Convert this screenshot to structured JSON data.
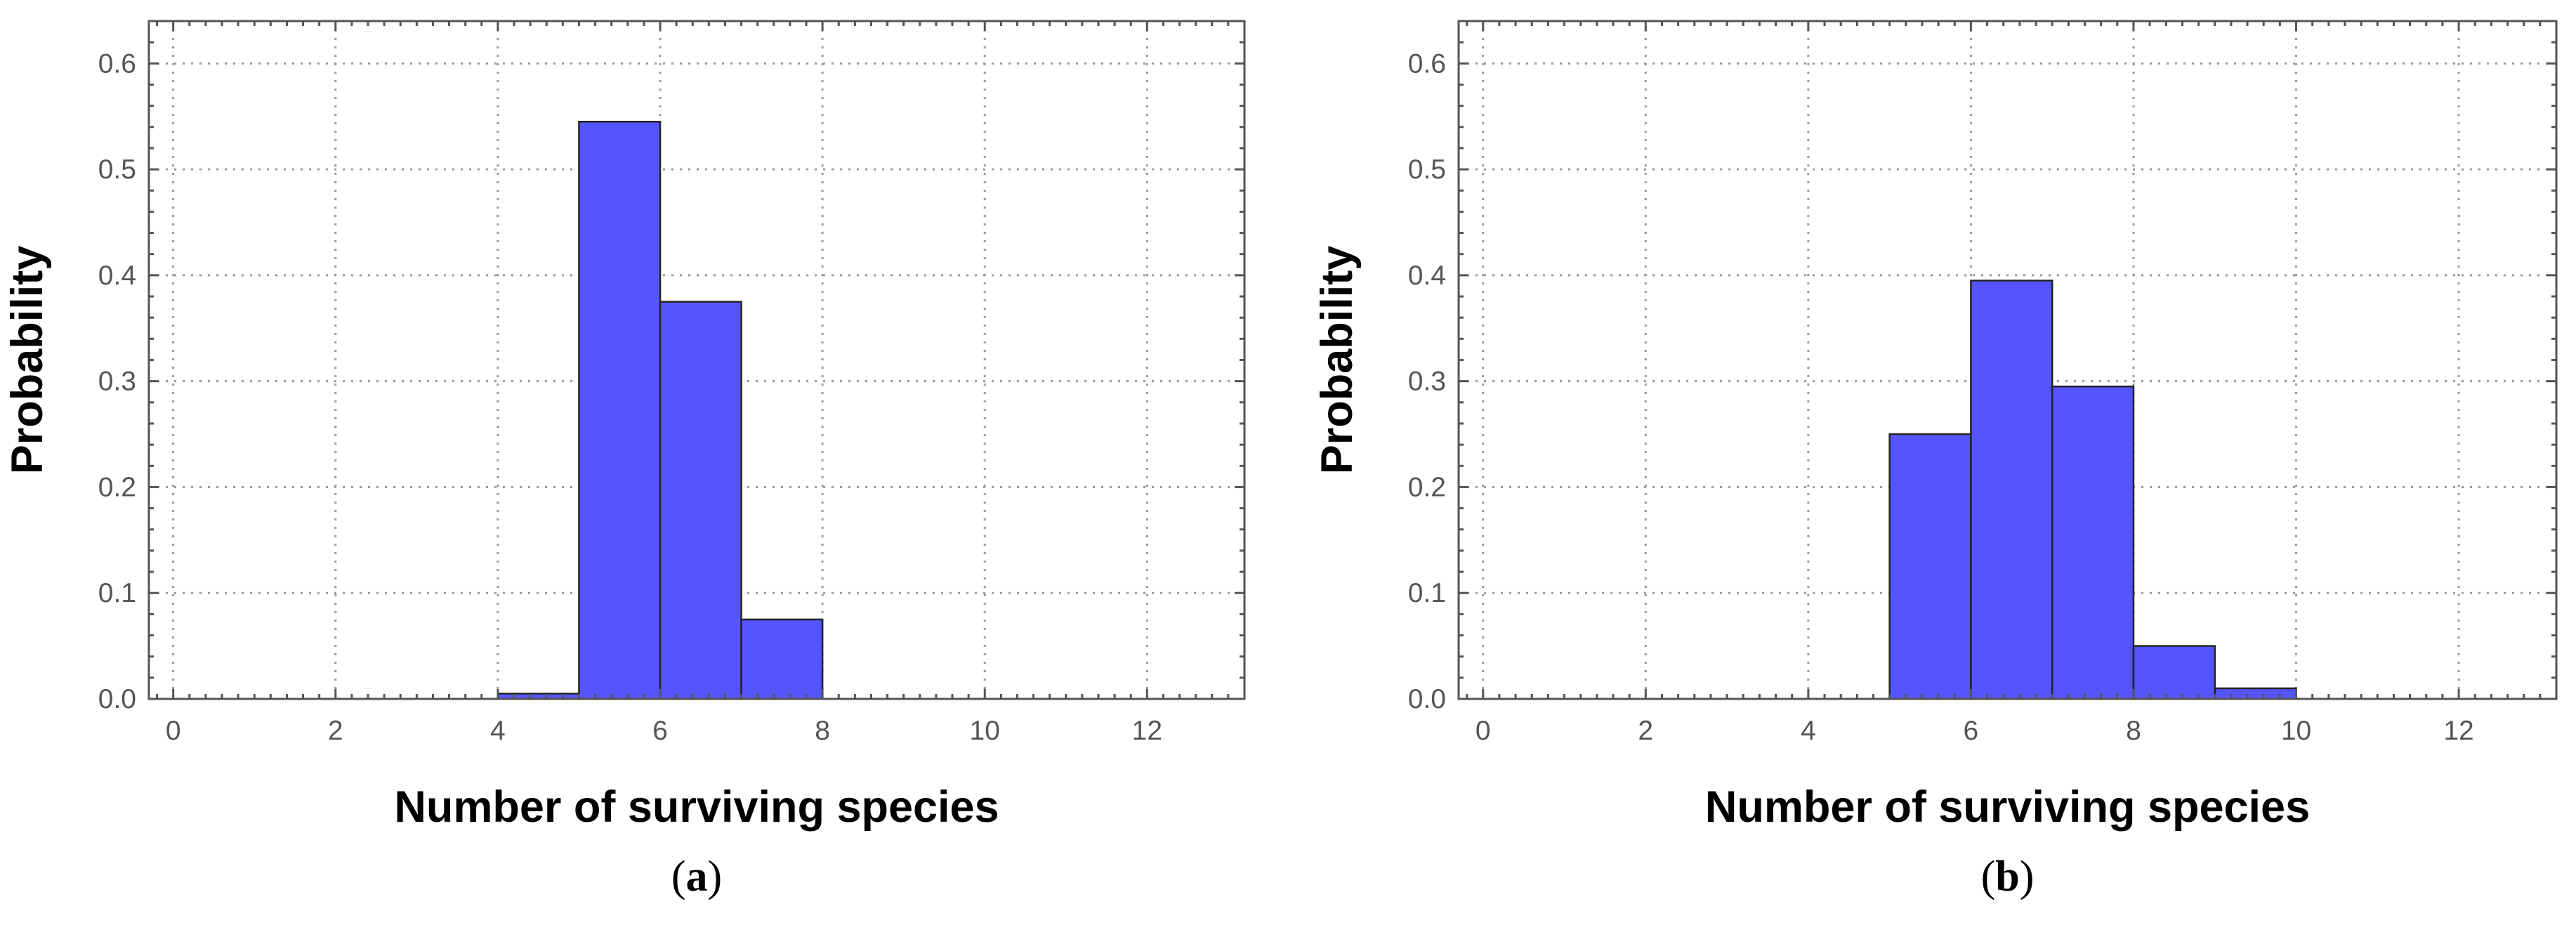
{
  "figure": {
    "panels": [
      {
        "caption": "(a)"
      },
      {
        "caption": "(b)"
      }
    ]
  },
  "colors": {
    "bar_fill": "#5555ff",
    "bar_stroke": "#222222",
    "frame": "#555555",
    "grid": "#9a9a9a"
  },
  "chart_data": [
    {
      "type": "bar",
      "histogram": true,
      "title": "",
      "xlabel": "Number of surviving species",
      "ylabel": "Probability",
      "xlim": [
        -0.3,
        13.2
      ],
      "ylim": [
        0,
        0.64
      ],
      "grid": true,
      "x_ticks": [
        0,
        2,
        4,
        6,
        8,
        10,
        12
      ],
      "y_ticks": [
        0.0,
        0.1,
        0.2,
        0.3,
        0.4,
        0.5,
        0.6
      ],
      "x_tick_labels": [
        "0",
        "2",
        "4",
        "6",
        "8",
        "10",
        "12"
      ],
      "y_tick_labels": [
        "0.0",
        "0.1",
        "0.2",
        "0.3",
        "0.4",
        "0.5",
        "0.6"
      ],
      "bins": [
        {
          "start": 4,
          "end": 5,
          "value": 0.005
        },
        {
          "start": 5,
          "end": 6,
          "value": 0.545
        },
        {
          "start": 6,
          "end": 7,
          "value": 0.375
        },
        {
          "start": 7,
          "end": 8,
          "value": 0.075
        }
      ]
    },
    {
      "type": "bar",
      "histogram": true,
      "title": "",
      "xlabel": "Number of surviving species",
      "ylabel": "Probability",
      "xlim": [
        -0.3,
        13.2
      ],
      "ylim": [
        0,
        0.64
      ],
      "grid": true,
      "x_ticks": [
        0,
        2,
        4,
        6,
        8,
        10,
        12
      ],
      "y_ticks": [
        0.0,
        0.1,
        0.2,
        0.3,
        0.4,
        0.5,
        0.6
      ],
      "x_tick_labels": [
        "0",
        "2",
        "4",
        "6",
        "8",
        "10",
        "12"
      ],
      "y_tick_labels": [
        "0.0",
        "0.1",
        "0.2",
        "0.3",
        "0.4",
        "0.5",
        "0.6"
      ],
      "bins": [
        {
          "start": 5,
          "end": 6,
          "value": 0.25
        },
        {
          "start": 6,
          "end": 7,
          "value": 0.395
        },
        {
          "start": 7,
          "end": 8,
          "value": 0.295
        },
        {
          "start": 8,
          "end": 9,
          "value": 0.05
        },
        {
          "start": 9,
          "end": 10,
          "value": 0.01
        }
      ]
    }
  ]
}
